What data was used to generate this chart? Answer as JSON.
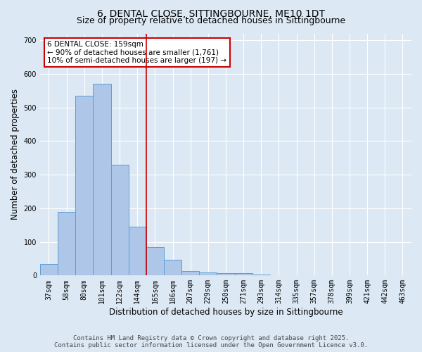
{
  "title": "6, DENTAL CLOSE, SITTINGBOURNE, ME10 1DT",
  "subtitle": "Size of property relative to detached houses in Sittingbourne",
  "xlabel": "Distribution of detached houses by size in Sittingbourne",
  "ylabel": "Number of detached properties",
  "categories": [
    "37sqm",
    "58sqm",
    "80sqm",
    "101sqm",
    "122sqm",
    "144sqm",
    "165sqm",
    "186sqm",
    "207sqm",
    "229sqm",
    "250sqm",
    "271sqm",
    "293sqm",
    "314sqm",
    "335sqm",
    "357sqm",
    "378sqm",
    "399sqm",
    "421sqm",
    "442sqm",
    "463sqm"
  ],
  "values": [
    35,
    190,
    535,
    570,
    330,
    145,
    85,
    47,
    13,
    10,
    8,
    8,
    3,
    0,
    0,
    0,
    0,
    0,
    0,
    0,
    0
  ],
  "bar_color": "#aec6e8",
  "bar_edge_color": "#5a9fd4",
  "vline_x_index": 5.5,
  "vline_color": "#cc0000",
  "annotation_text": "6 DENTAL CLOSE: 159sqm\n← 90% of detached houses are smaller (1,761)\n10% of semi-detached houses are larger (197) →",
  "annotation_box_color": "#cc0000",
  "annotation_text_color": "#000000",
  "ylim": [
    0,
    720
  ],
  "yticks": [
    0,
    100,
    200,
    300,
    400,
    500,
    600,
    700
  ],
  "bg_color": "#dce9f5",
  "plot_bg_color": "#dce9f5",
  "footer": "Contains HM Land Registry data © Crown copyright and database right 2025.\nContains public sector information licensed under the Open Government Licence v3.0.",
  "title_fontsize": 10,
  "subtitle_fontsize": 9,
  "xlabel_fontsize": 8.5,
  "ylabel_fontsize": 8.5,
  "tick_fontsize": 7,
  "footer_fontsize": 6.5
}
